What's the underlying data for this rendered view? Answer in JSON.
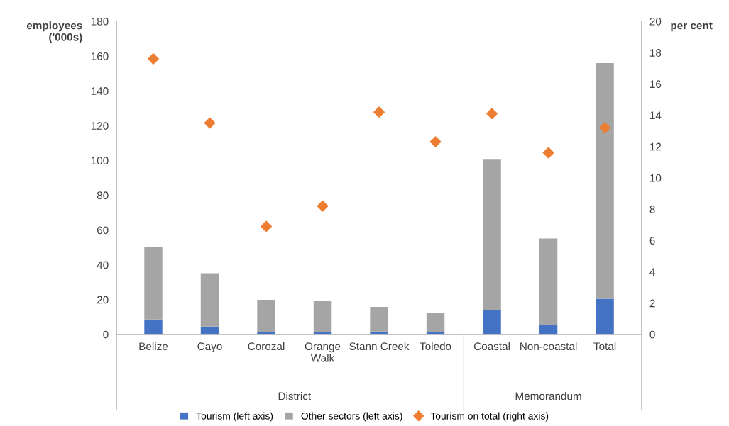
{
  "chart_data": {
    "type": "bar",
    "stacked": true,
    "categories": [
      "Belize",
      "Cayo",
      "Corozal",
      "Orange\nWalk",
      "Stann Creek",
      "Toledo",
      "Coastal",
      "Non-coastal",
      "Total"
    ],
    "series": [
      {
        "name": "Tourism (left axis)",
        "color": "#4472c4",
        "values": [
          8.6,
          4.5,
          1.1,
          1.1,
          1.6,
          1.1,
          13.9,
          5.6,
          20.5
        ]
      },
      {
        "name": "Other sectors (left axis)",
        "color": "#a5a5a5",
        "values": [
          41.8,
          30.7,
          18.8,
          18.3,
          14.2,
          11.0,
          86.6,
          49.5,
          135.5
        ]
      },
      {
        "name": "Tourism on total (right axis)",
        "type": "scatter",
        "axis": "y2",
        "marker": "diamond",
        "color": "#ed7d31",
        "values": [
          17.6,
          13.5,
          6.9,
          8.2,
          14.2,
          12.3,
          14.1,
          11.6,
          13.2
        ]
      }
    ],
    "ylabel": "employees\n('000s)",
    "y2label": "per cent",
    "ylim": [
      0,
      180
    ],
    "yticks": [
      0,
      20,
      40,
      60,
      80,
      100,
      120,
      140,
      160,
      180
    ],
    "y2lim": [
      0,
      20
    ],
    "y2ticks": [
      0,
      2,
      4,
      6,
      8,
      10,
      12,
      14,
      16,
      18,
      20
    ],
    "annotations": [
      "District",
      "Memorandum"
    ],
    "grid": false,
    "legend": "bottom"
  }
}
